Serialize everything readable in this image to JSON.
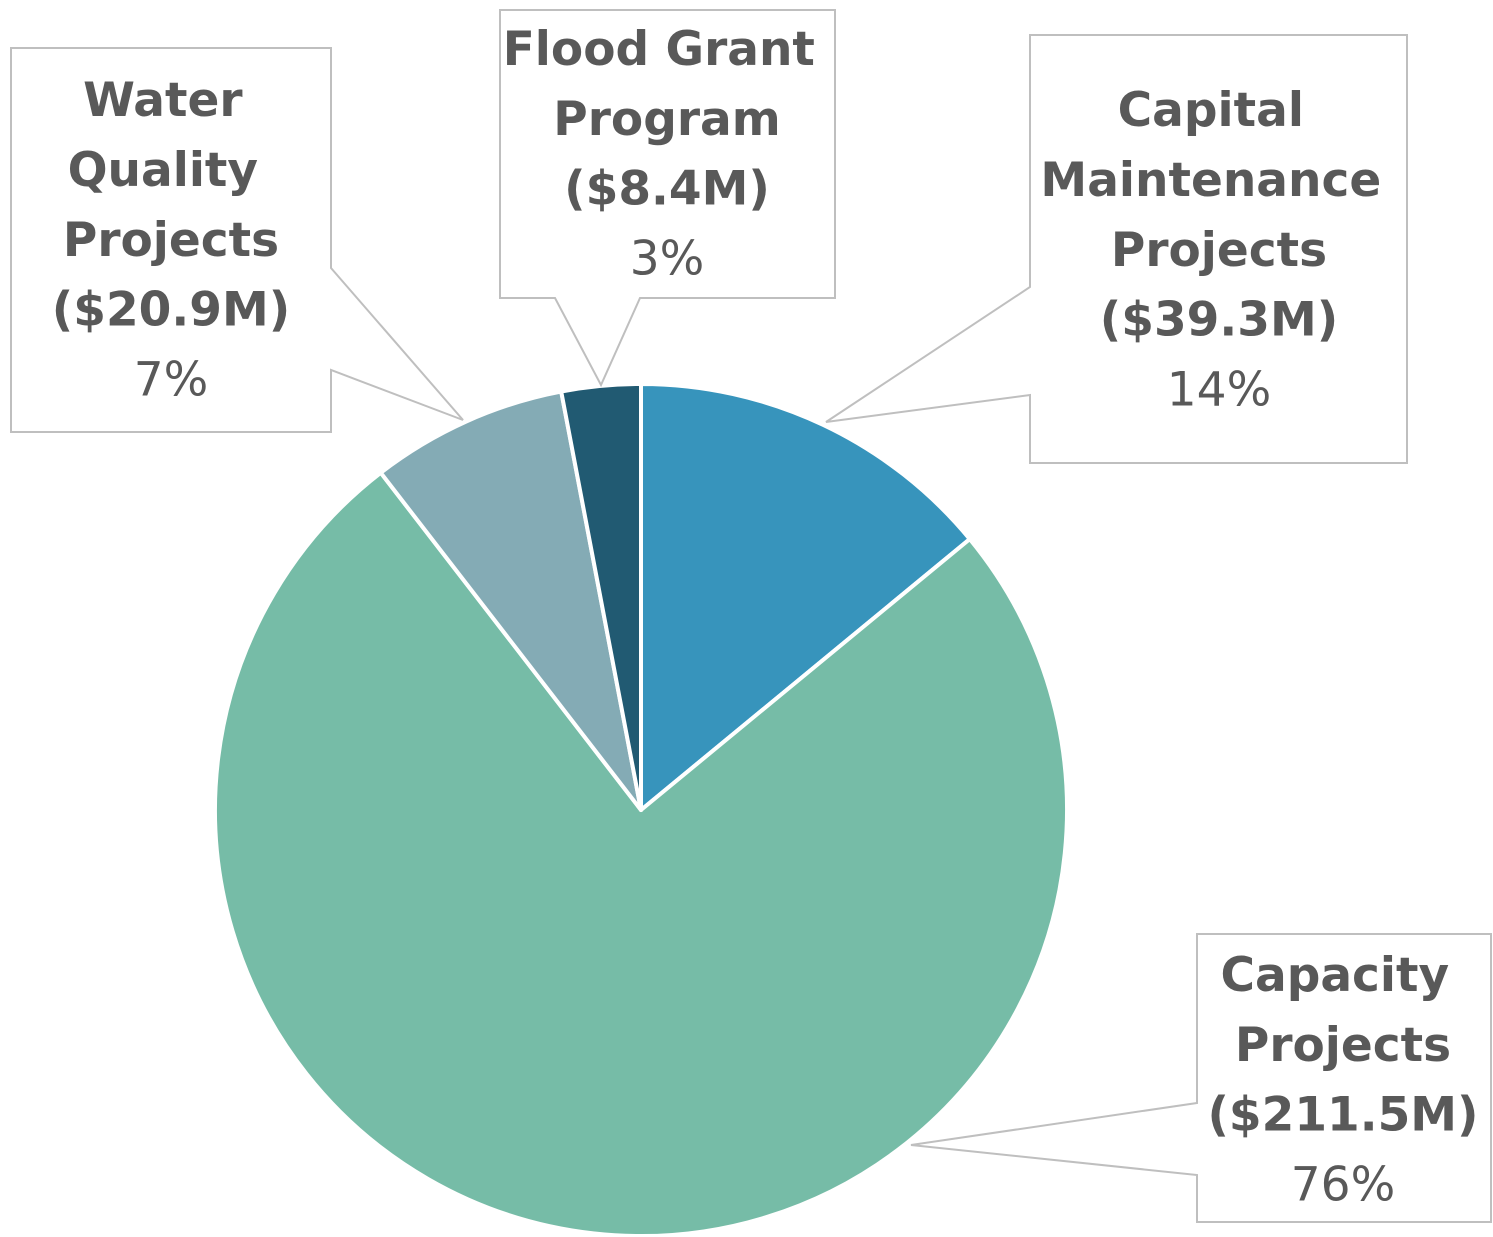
{
  "chart_data": {
    "type": "pie",
    "categories": [
      "Capital Maintenance Projects",
      "Capacity Projects",
      "Water Quality Projects",
      "Flood Grant Program"
    ],
    "values": [
      39.3,
      211.5,
      20.9,
      8.4
    ],
    "value_labels": [
      "($39.3M)",
      "($211.5M)",
      "($20.9M)",
      "($8.4M)"
    ],
    "percentages": [
      14,
      76,
      7,
      3
    ],
    "percentage_labels": [
      "14%",
      "76%",
      "7%",
      "3%"
    ],
    "colors": [
      "#3794bc",
      "#76bca7",
      "#84abb5",
      "#215a72"
    ]
  }
}
